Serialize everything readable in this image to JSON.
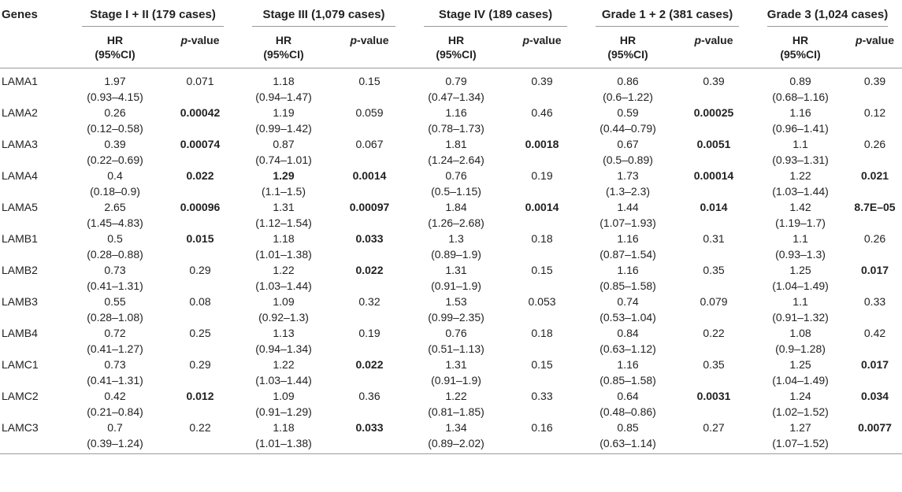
{
  "header": {
    "genes_label": "Genes",
    "groups": [
      "Stage I + II (179 cases)",
      "Stage III (1,079 cases)",
      "Stage IV (189 cases)",
      "Grade 1 + 2 (381 cases)",
      "Grade 3 (1,024 cases)"
    ],
    "hr_label_1": "HR",
    "hr_label_2": "(95%CI)",
    "p_label_italic": "p",
    "p_label_rest": "-value"
  },
  "rows": [
    {
      "gene": "LAMA1",
      "cells": [
        {
          "hr": "1.97",
          "ci": "(0.93–4.15)",
          "p": "0.071",
          "sig": false
        },
        {
          "hr": "1.18",
          "ci": "(0.94–1.47)",
          "p": "0.15",
          "sig": false
        },
        {
          "hr": "0.79",
          "ci": "(0.47–1.34)",
          "p": "0.39",
          "sig": false
        },
        {
          "hr": "0.86",
          "ci": "(0.6–1.22)",
          "p": "0.39",
          "sig": false
        },
        {
          "hr": "0.89",
          "ci": "(0.68–1.16)",
          "p": "0.39",
          "sig": false
        }
      ]
    },
    {
      "gene": "LAMA2",
      "cells": [
        {
          "hr": "0.26",
          "ci": "(0.12–0.58)",
          "p": "0.00042",
          "sig": true
        },
        {
          "hr": "1.19",
          "ci": "(0.99–1.42)",
          "p": "0.059",
          "sig": false
        },
        {
          "hr": "1.16",
          "ci": "(0.78–1.73)",
          "p": "0.46",
          "sig": false
        },
        {
          "hr": "0.59",
          "ci": "(0.44–0.79)",
          "p": "0.00025",
          "sig": true
        },
        {
          "hr": "1.16",
          "ci": "(0.96–1.41)",
          "p": "0.12",
          "sig": false
        }
      ]
    },
    {
      "gene": "LAMA3",
      "cells": [
        {
          "hr": "0.39",
          "ci": "(0.22–0.69)",
          "p": "0.00074",
          "sig": true
        },
        {
          "hr": "0.87",
          "ci": "(0.74–1.01)",
          "p": "0.067",
          "sig": false
        },
        {
          "hr": "1.81",
          "ci": "(1.24–2.64)",
          "p": "0.0018",
          "sig": true
        },
        {
          "hr": "0.67",
          "ci": "(0.5–0.89)",
          "p": "0.0051",
          "sig": true
        },
        {
          "hr": "1.1",
          "ci": "(0.93–1.31)",
          "p": "0.26",
          "sig": false
        }
      ]
    },
    {
      "gene": "LAMA4",
      "cells": [
        {
          "hr": "0.4",
          "ci": "(0.18–0.9)",
          "p": "0.022",
          "sig": true
        },
        {
          "hr": "1.29",
          "ci": "(1.1–1.5)",
          "p": "0.0014",
          "sig": true,
          "hr_bold": true
        },
        {
          "hr": "0.76",
          "ci": "(0.5–1.15)",
          "p": "0.19",
          "sig": false
        },
        {
          "hr": "1.73",
          "ci": "(1.3–2.3)",
          "p": "0.00014",
          "sig": true
        },
        {
          "hr": "1.22",
          "ci": "(1.03–1.44)",
          "p": "0.021",
          "sig": true
        }
      ]
    },
    {
      "gene": "LAMA5",
      "cells": [
        {
          "hr": "2.65",
          "ci": "(1.45–4.83)",
          "p": "0.00096",
          "sig": true
        },
        {
          "hr": "1.31",
          "ci": "(1.12–1.54)",
          "p": "0.00097",
          "sig": true
        },
        {
          "hr": "1.84",
          "ci": "(1.26–2.68)",
          "p": "0.0014",
          "sig": true
        },
        {
          "hr": "1.44",
          "ci": "(1.07–1.93)",
          "p": "0.014",
          "sig": true
        },
        {
          "hr": "1.42",
          "ci": "(1.19–1.7)",
          "p": "8.7E–05",
          "sig": true
        }
      ]
    },
    {
      "gene": "LAMB1",
      "cells": [
        {
          "hr": "0.5",
          "ci": "(0.28–0.88)",
          "p": "0.015",
          "sig": true
        },
        {
          "hr": "1.18",
          "ci": "(1.01–1.38)",
          "p": "0.033",
          "sig": true
        },
        {
          "hr": "1.3",
          "ci": "(0.89–1.9)",
          "p": "0.18",
          "sig": false
        },
        {
          "hr": "1.16",
          "ci": "(0.87–1.54)",
          "p": "0.31",
          "sig": false
        },
        {
          "hr": "1.1",
          "ci": "(0.93–1.3)",
          "p": "0.26",
          "sig": false
        }
      ]
    },
    {
      "gene": "LAMB2",
      "cells": [
        {
          "hr": "0.73",
          "ci": "(0.41–1.31)",
          "p": "0.29",
          "sig": false
        },
        {
          "hr": "1.22",
          "ci": "(1.03–1.44)",
          "p": "0.022",
          "sig": true
        },
        {
          "hr": "1.31",
          "ci": "(0.91–1.9)",
          "p": "0.15",
          "sig": false
        },
        {
          "hr": "1.16",
          "ci": "(0.85–1.58)",
          "p": "0.35",
          "sig": false
        },
        {
          "hr": "1.25",
          "ci": "(1.04–1.49)",
          "p": "0.017",
          "sig": true
        }
      ]
    },
    {
      "gene": "LAMB3",
      "cells": [
        {
          "hr": "0.55",
          "ci": "(0.28–1.08)",
          "p": "0.08",
          "sig": false
        },
        {
          "hr": "1.09",
          "ci": "(0.92–1.3)",
          "p": "0.32",
          "sig": false
        },
        {
          "hr": "1.53",
          "ci": "(0.99–2.35)",
          "p": "0.053",
          "sig": false
        },
        {
          "hr": "0.74",
          "ci": "(0.53–1.04)",
          "p": "0.079",
          "sig": false
        },
        {
          "hr": "1.1",
          "ci": "(0.91–1.32)",
          "p": "0.33",
          "sig": false
        }
      ]
    },
    {
      "gene": "LAMB4",
      "cells": [
        {
          "hr": "0.72",
          "ci": "(0.41–1.27)",
          "p": "0.25",
          "sig": false
        },
        {
          "hr": "1.13",
          "ci": "(0.94–1.34)",
          "p": "0.19",
          "sig": false
        },
        {
          "hr": "0.76",
          "ci": "(0.51–1.13)",
          "p": "0.18",
          "sig": false
        },
        {
          "hr": "0.84",
          "ci": "(0.63–1.12)",
          "p": "0.22",
          "sig": false
        },
        {
          "hr": "1.08",
          "ci": "(0.9–1.28)",
          "p": "0.42",
          "sig": false
        }
      ]
    },
    {
      "gene": "LAMC1",
      "cells": [
        {
          "hr": "0.73",
          "ci": "(0.41–1.31)",
          "p": "0.29",
          "sig": false
        },
        {
          "hr": "1.22",
          "ci": "(1.03–1.44)",
          "p": "0.022",
          "sig": true
        },
        {
          "hr": "1.31",
          "ci": "(0.91–1.9)",
          "p": "0.15",
          "sig": false
        },
        {
          "hr": "1.16",
          "ci": "(0.85–1.58)",
          "p": "0.35",
          "sig": false
        },
        {
          "hr": "1.25",
          "ci": "(1.04–1.49)",
          "p": "0.017",
          "sig": true
        }
      ]
    },
    {
      "gene": "LAMC2",
      "cells": [
        {
          "hr": "0.42",
          "ci": "(0.21–0.84)",
          "p": "0.012",
          "sig": true
        },
        {
          "hr": "1.09",
          "ci": "(0.91–1.29)",
          "p": "0.36",
          "sig": false
        },
        {
          "hr": "1.22",
          "ci": "(0.81–1.85)",
          "p": "0.33",
          "sig": false
        },
        {
          "hr": "0.64",
          "ci": "(0.48–0.86)",
          "p": "0.0031",
          "sig": true
        },
        {
          "hr": "1.24",
          "ci": "(1.02–1.52)",
          "p": "0.034",
          "sig": true
        }
      ]
    },
    {
      "gene": "LAMC3",
      "cells": [
        {
          "hr": "0.7",
          "ci": "(0.39–1.24)",
          "p": "0.22",
          "sig": false
        },
        {
          "hr": "1.18",
          "ci": "(1.01–1.38)",
          "p": "0.033",
          "sig": true
        },
        {
          "hr": "1.34",
          "ci": "(0.89–2.02)",
          "p": "0.16",
          "sig": false
        },
        {
          "hr": "0.85",
          "ci": "(0.63–1.14)",
          "p": "0.27",
          "sig": false
        },
        {
          "hr": "1.27",
          "ci": "(1.07–1.52)",
          "p": "0.0077",
          "sig": true
        }
      ]
    }
  ]
}
